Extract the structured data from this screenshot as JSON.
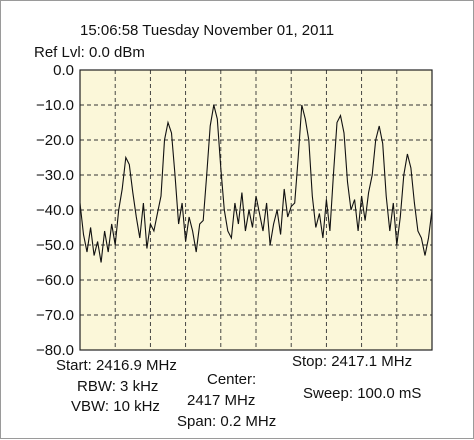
{
  "header": {
    "timestamp": "15:06:58 Tuesday November 01, 2011",
    "ref_level": "Ref Lvl: 0.0 dBm"
  },
  "footer": {
    "start": "Start: 2416.9 MHz",
    "rbw": "RBW: 3 kHz",
    "vbw": "VBW: 10 kHz",
    "center_label": "Center:",
    "center_value": "2417 MHz",
    "span": "Span: 0.2 MHz",
    "stop": "Stop: 2417.1 MHz",
    "sweep": "Sweep: 100.0 mS"
  },
  "colors": {
    "plot_background": "#fbf7d9",
    "grid": "#333333",
    "trace": "#111111"
  },
  "chart_data": {
    "type": "line",
    "title": "",
    "xlabel": "",
    "ylabel": "",
    "xlim": [
      2416.9,
      2417.1
    ],
    "ylim": [
      -80,
      0
    ],
    "yticks": [
      0,
      -10,
      -20,
      -30,
      -40,
      -50,
      -60,
      -70,
      -80
    ],
    "ytick_labels": [
      "0.0",
      "−10.0",
      "−20.0",
      "−30.0",
      "−40.0",
      "−50.0",
      "−60.0",
      "−70.0",
      "−80.0"
    ],
    "grid": true,
    "grid_style": "dashed",
    "x_divisions": 10,
    "series": [
      {
        "values_x": [
          2416.9,
          2416.902,
          2416.904,
          2416.906,
          2416.908,
          2416.91,
          2416.912,
          2416.914,
          2416.916,
          2416.918,
          2416.92,
          2416.922,
          2416.924,
          2416.926,
          2416.928,
          2416.93,
          2416.932,
          2416.934,
          2416.936,
          2416.938,
          2416.94,
          2416.942,
          2416.944,
          2416.946,
          2416.948,
          2416.95,
          2416.952,
          2416.954,
          2416.956,
          2416.958,
          2416.96,
          2416.962,
          2416.964,
          2416.966,
          2416.968,
          2416.97,
          2416.972,
          2416.974,
          2416.976,
          2416.978,
          2416.98,
          2416.982,
          2416.984,
          2416.986,
          2416.988,
          2416.99,
          2416.992,
          2416.994,
          2416.996,
          2416.998,
          2417.0,
          2417.002,
          2417.004,
          2417.006,
          2417.008,
          2417.01,
          2417.012,
          2417.014,
          2417.016,
          2417.018,
          2417.02,
          2417.022,
          2417.024,
          2417.026,
          2417.028,
          2417.03,
          2417.032,
          2417.034,
          2417.036,
          2417.038,
          2417.04,
          2417.042,
          2417.044,
          2417.046,
          2417.048,
          2417.05,
          2417.052,
          2417.054,
          2417.056,
          2417.058,
          2417.06,
          2417.062,
          2417.064,
          2417.066,
          2417.068,
          2417.07,
          2417.072,
          2417.074,
          2417.076,
          2417.078,
          2417.08,
          2417.082,
          2417.084,
          2417.086,
          2417.088,
          2417.09,
          2417.092,
          2417.094,
          2417.096,
          2417.098,
          2417.1
        ],
        "values_y": [
          -38,
          -47,
          -52,
          -45,
          -53,
          -49,
          -55,
          -46,
          -52,
          -44,
          -50,
          -40,
          -34,
          -25,
          -27,
          -35,
          -42,
          -48,
          -38,
          -51,
          -44,
          -46,
          -41,
          -36,
          -20,
          -15,
          -18,
          -30,
          -44,
          -38,
          -49,
          -42,
          -46,
          -52,
          -44,
          -43,
          -30,
          -16,
          -10,
          -14,
          -28,
          -40,
          -46,
          -48,
          -38,
          -44,
          -35,
          -46,
          -40,
          -45,
          -36,
          -41,
          -46,
          -38,
          -50,
          -44,
          -40,
          -47,
          -34,
          -42,
          -39,
          -38,
          -25,
          -10,
          -14,
          -20,
          -36,
          -45,
          -41,
          -48,
          -37,
          -46,
          -30,
          -15,
          -13,
          -18,
          -32,
          -40,
          -37,
          -46,
          -36,
          -43,
          -35,
          -30,
          -20,
          -16,
          -21,
          -36,
          -46,
          -38,
          -50,
          -42,
          -30,
          -24,
          -28,
          -38,
          -46,
          -48,
          -53,
          -48,
          -40
        ]
      }
    ]
  }
}
